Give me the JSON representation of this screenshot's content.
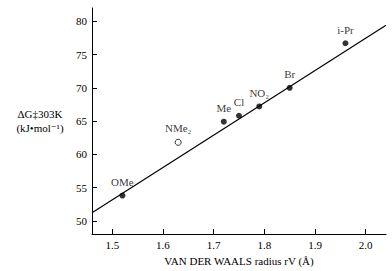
{
  "chart_data": {
    "type": "scatter",
    "x_label": "VAN DER WAALS radius rV (Å)",
    "y_label": "ΔG‡303K\n(kJ•mol⁻¹)",
    "color": "#000000",
    "grid": false,
    "xlim": [
      1.46,
      2.04
    ],
    "xticks": [
      1.5,
      1.6,
      1.7,
      1.8,
      1.9,
      {
        "value": 2,
        "label": "2.0"
      }
    ],
    "ylim": [
      48,
      82
    ],
    "yticks": [
      50,
      55,
      60,
      65,
      70,
      75,
      80
    ],
    "series": [
      {
        "type": "scatter",
        "x": [
          1.52,
          1.63,
          1.72,
          1.75,
          1.79,
          1.85,
          1.96
        ],
        "values": [
          53.8,
          61.8,
          64.9,
          65.8,
          67.2,
          70.0,
          76.7
        ],
        "point_labels": [
          "OMe",
          "NMe₂",
          "Me",
          "Cl",
          "NO₂",
          "Br",
          "i-Pr"
        ],
        "markers": [
          "filled",
          "open",
          "filled",
          "filled",
          "filled",
          "filled",
          "filled"
        ]
      },
      {
        "type": "line",
        "x": [
          1.46,
          2.04
        ],
        "values": [
          51.2,
          79.4
        ]
      }
    ]
  }
}
